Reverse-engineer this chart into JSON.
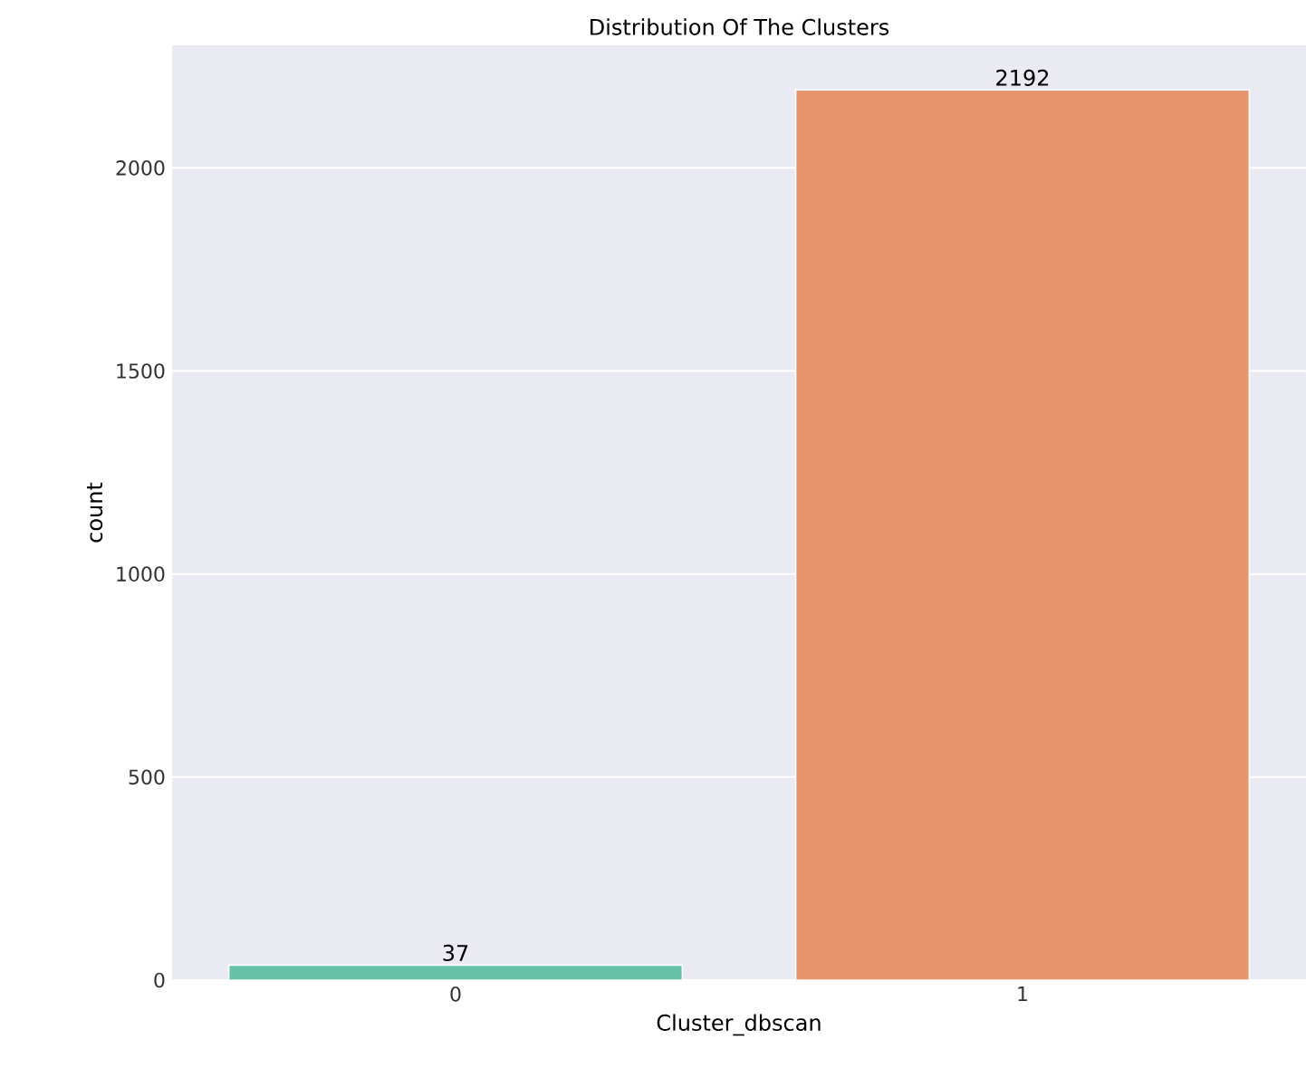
{
  "chart_data": {
    "type": "bar",
    "title": "Distribution Of The Clusters",
    "xlabel": "Cluster_dbscan",
    "ylabel": "count",
    "categories": [
      "0",
      "1"
    ],
    "values": [
      37,
      2192
    ],
    "colors": [
      "#66c2a5",
      "#e8956f"
    ],
    "ylim": [
      0,
      2302
    ],
    "yticks": [
      0,
      500,
      1000,
      1500,
      2000
    ],
    "grid": "y",
    "data_labels": true
  }
}
